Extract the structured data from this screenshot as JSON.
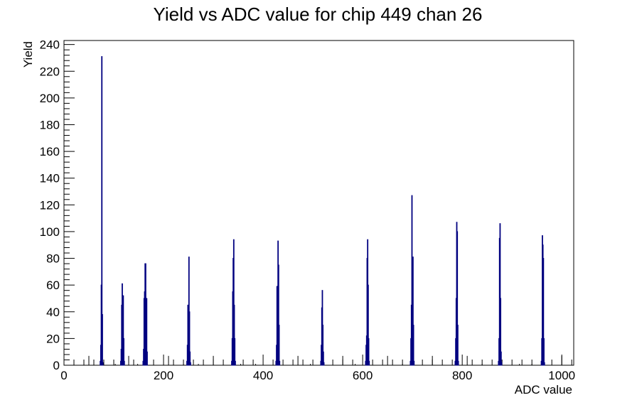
{
  "chart_data": {
    "type": "bar",
    "title": "Yield vs ADC value for chip 449 chan 26",
    "xlabel": "ADC value",
    "ylabel": "Yield",
    "xlim": [
      0,
      1024
    ],
    "ylim": [
      0,
      243
    ],
    "x_ticks": [
      "0",
      "200",
      "400",
      "600",
      "800",
      "1000"
    ],
    "y_ticks": [
      "0",
      "20",
      "40",
      "60",
      "80",
      "100",
      "120",
      "140",
      "160",
      "180",
      "200",
      "220",
      "240"
    ],
    "grid": false,
    "line_color": "#000080",
    "peaks": [
      {
        "values": [
          [
            73,
            3
          ],
          [
            74,
            15
          ],
          [
            75,
            60
          ],
          [
            76,
            231
          ],
          [
            77,
            38
          ],
          [
            78,
            2
          ]
        ]
      },
      {
        "values": [
          [
            114,
            3
          ],
          [
            115,
            12
          ],
          [
            116,
            45
          ],
          [
            117,
            61
          ],
          [
            118,
            52
          ],
          [
            119,
            52
          ],
          [
            120,
            20
          ],
          [
            121,
            3
          ]
        ]
      },
      {
        "values": [
          [
            159,
            3
          ],
          [
            160,
            12
          ],
          [
            161,
            50
          ],
          [
            162,
            55
          ],
          [
            163,
            76
          ],
          [
            164,
            76
          ],
          [
            165,
            45
          ],
          [
            166,
            50
          ],
          [
            167,
            10
          ]
        ]
      },
      {
        "values": [
          [
            247,
            3
          ],
          [
            248,
            15
          ],
          [
            249,
            45
          ],
          [
            250,
            40
          ],
          [
            251,
            81
          ],
          [
            252,
            40
          ],
          [
            253,
            10
          ],
          [
            254,
            2
          ]
        ]
      },
      {
        "values": [
          [
            337,
            3
          ],
          [
            338,
            20
          ],
          [
            339,
            55
          ],
          [
            340,
            80
          ],
          [
            341,
            94
          ],
          [
            342,
            45
          ],
          [
            343,
            20
          ],
          [
            344,
            3
          ]
        ]
      },
      {
        "values": [
          [
            426,
            3
          ],
          [
            427,
            15
          ],
          [
            428,
            59
          ],
          [
            429,
            33
          ],
          [
            430,
            93
          ],
          [
            431,
            75
          ],
          [
            432,
            30
          ],
          [
            433,
            3
          ]
        ]
      },
      {
        "values": [
          [
            516,
            3
          ],
          [
            517,
            15
          ],
          [
            518,
            43
          ],
          [
            519,
            56
          ],
          [
            520,
            30
          ],
          [
            521,
            10
          ],
          [
            522,
            2
          ]
        ]
      },
      {
        "values": [
          [
            606,
            3
          ],
          [
            607,
            15
          ],
          [
            608,
            22
          ],
          [
            609,
            80
          ],
          [
            610,
            94
          ],
          [
            611,
            60
          ],
          [
            612,
            20
          ],
          [
            613,
            3
          ]
        ]
      },
      {
        "values": [
          [
            696,
            3
          ],
          [
            697,
            20
          ],
          [
            698,
            45
          ],
          [
            699,
            127
          ],
          [
            700,
            30
          ],
          [
            701,
            81
          ],
          [
            702,
            30
          ],
          [
            703,
            3
          ]
        ]
      },
      {
        "values": [
          [
            786,
            3
          ],
          [
            787,
            20
          ],
          [
            788,
            50
          ],
          [
            789,
            107
          ],
          [
            790,
            100
          ],
          [
            791,
            30
          ],
          [
            792,
            3
          ]
        ]
      },
      {
        "values": [
          [
            873,
            3
          ],
          [
            874,
            20
          ],
          [
            875,
            95
          ],
          [
            876,
            106
          ],
          [
            877,
            50
          ],
          [
            878,
            10
          ],
          [
            879,
            2
          ]
        ]
      },
      {
        "values": [
          [
            959,
            3
          ],
          [
            960,
            20
          ],
          [
            961,
            97
          ],
          [
            962,
            90
          ],
          [
            963,
            80
          ],
          [
            964,
            20
          ],
          [
            965,
            2
          ]
        ]
      }
    ],
    "scattered_counts": [
      [
        50,
        7
      ],
      [
        103,
        1
      ],
      [
        130,
        7
      ],
      [
        148,
        1
      ],
      [
        210,
        7
      ],
      [
        240,
        1
      ],
      [
        270,
        1
      ],
      [
        300,
        7
      ],
      [
        355,
        1
      ],
      [
        385,
        1
      ],
      [
        470,
        7
      ],
      [
        495,
        1
      ],
      [
        560,
        7
      ],
      [
        585,
        1
      ],
      [
        650,
        7
      ],
      [
        680,
        1
      ],
      [
        740,
        7
      ],
      [
        810,
        7
      ],
      [
        840,
        1
      ],
      [
        915,
        1
      ],
      [
        940,
        1
      ],
      [
        1000,
        7
      ]
    ]
  }
}
